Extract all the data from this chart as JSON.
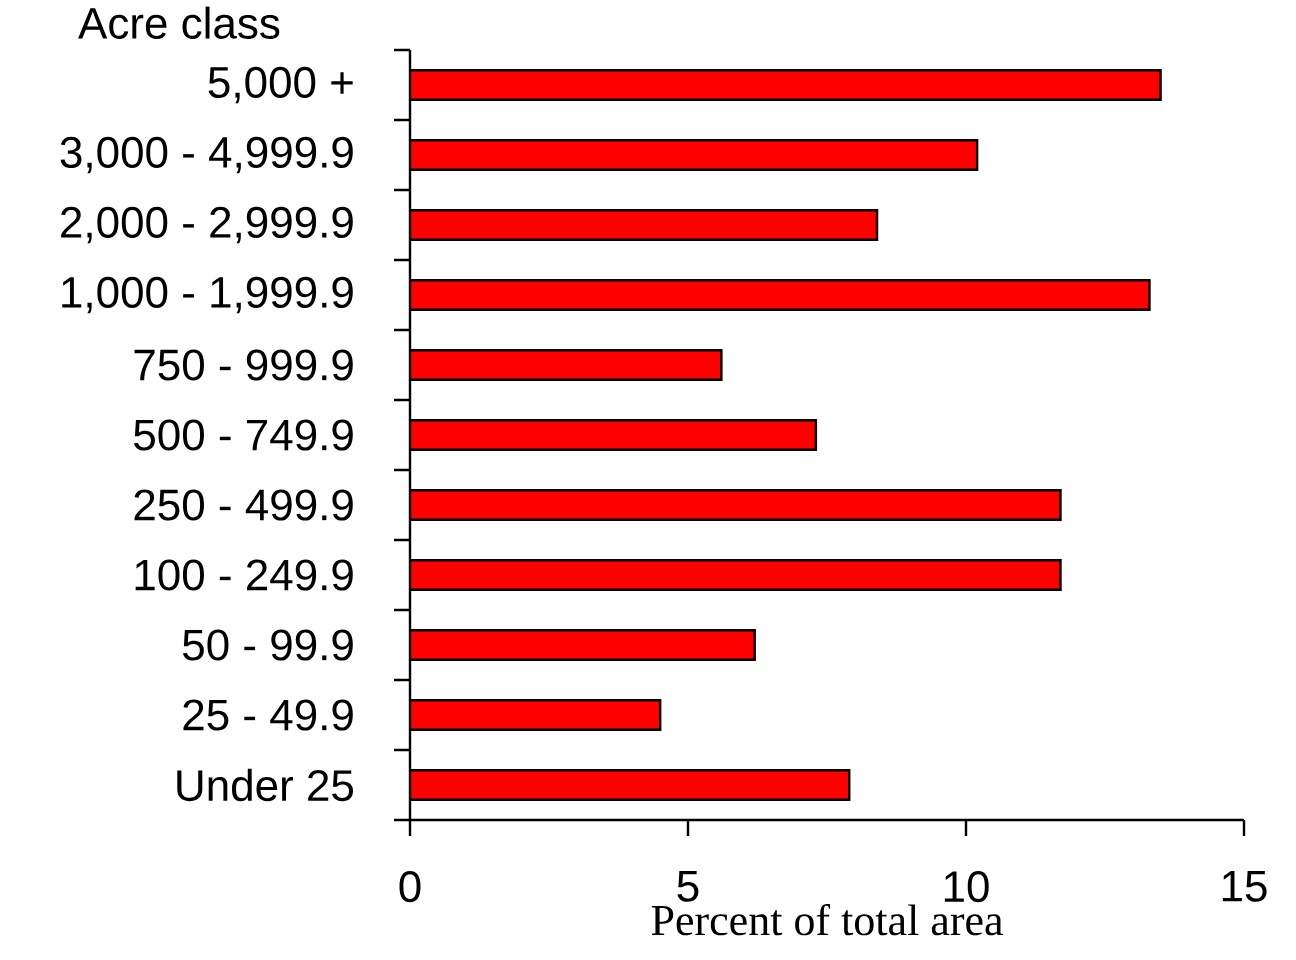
{
  "chart_data": {
    "type": "bar",
    "orientation": "horizontal",
    "ylabel": "Acre class",
    "xlabel": "Percent of total area",
    "categories": [
      "5,000 +",
      "3,000 - 4,999.9",
      "2,000 - 2,999.9",
      "1,000 - 1,999.9",
      "750 - 999.9",
      "500 - 749.9",
      "250 - 499.9",
      "100 - 249.9",
      "50 - 99.9",
      "25 - 49.9",
      "Under 25"
    ],
    "values": [
      13.5,
      10.2,
      8.4,
      13.3,
      5.6,
      7.3,
      11.7,
      11.7,
      6.2,
      4.5,
      7.9
    ],
    "color": "#ff0000",
    "xlim": [
      0,
      15
    ],
    "xticks": [
      0,
      5,
      10,
      15
    ]
  }
}
